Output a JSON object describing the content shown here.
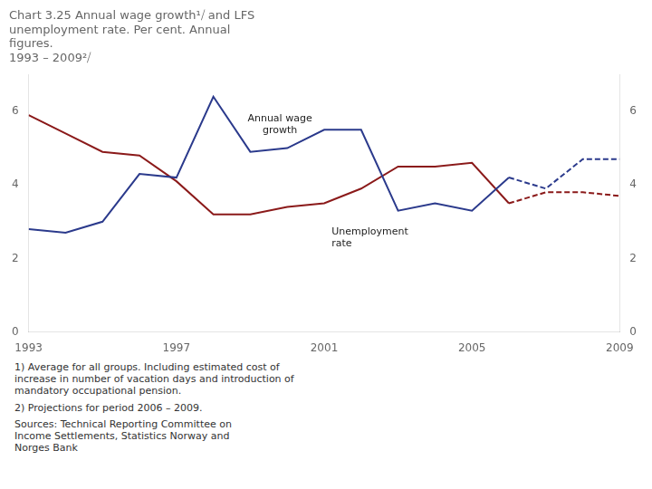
{
  "chart_data": {
    "type": "line",
    "title": "Chart 3.25 Annual wage growth¹⧸ and LFS\nunemployment rate. Per cent. Annual\nfigures.\n1993 – 2009²⧸",
    "series": [
      {
        "x": [
          1993,
          1994,
          1995,
          1996,
          1997,
          1998,
          1999,
          2000,
          2001,
          2002,
          2003,
          2004,
          2005,
          2006
        ],
        "values": [
          2.8,
          2.7,
          3.0,
          4.3,
          4.2,
          6.4,
          4.9,
          5.0,
          5.5,
          5.5,
          3.3,
          3.5,
          3.3,
          4.2
        ],
        "color": "#2B3A8C",
        "line_style": "solid"
      },
      {
        "x": [
          2006,
          2007,
          2008,
          2009
        ],
        "values": [
          4.2,
          3.9,
          4.7,
          4.7
        ],
        "color": "#2B3A8C",
        "line_style": "dashed"
      },
      {
        "x": [
          1993,
          1994,
          1995,
          1996,
          1997,
          1998,
          1999,
          2000,
          2001,
          2002,
          2003,
          2004,
          2005,
          2006
        ],
        "values": [
          5.9,
          5.4,
          4.9,
          4.8,
          4.1,
          3.2,
          3.2,
          3.4,
          3.5,
          3.9,
          4.5,
          4.5,
          4.6,
          3.5
        ],
        "color": "#8B1A1A",
        "line_style": "solid"
      },
      {
        "x": [
          2006,
          2007,
          2008,
          2009
        ],
        "values": [
          3.5,
          3.8,
          3.8,
          3.7
        ],
        "color": "#8B1A1A",
        "line_style": "dashed"
      }
    ],
    "xlim": [
      1993,
      2009
    ],
    "xticks": [
      1993,
      1997,
      2001,
      2005,
      2009
    ],
    "ylim": [
      0,
      7
    ],
    "yticks": [
      0,
      2,
      4,
      6
    ],
    "y2lim": [
      0,
      7
    ],
    "y2ticks": [
      0,
      2,
      4,
      6
    ],
    "grid": false,
    "annotations": [
      {
        "text": "Annual wage\ngrowth",
        "x": 1999.8,
        "y": 5.35
      },
      {
        "text": "Unemployment\nrate",
        "x": 2001.2,
        "y": 2.85
      }
    ],
    "footnotes": [
      "1) Average for all groups. Including estimated cost of\nincrease in number of vacation days and introduction of\nmandatory occupational pension.",
      "2) Projections for period 2006 – 2009."
    ],
    "sources": "Sources: Technical Reporting Committee on\nIncome Settlements, Statistics Norway and\nNorges Bank"
  }
}
